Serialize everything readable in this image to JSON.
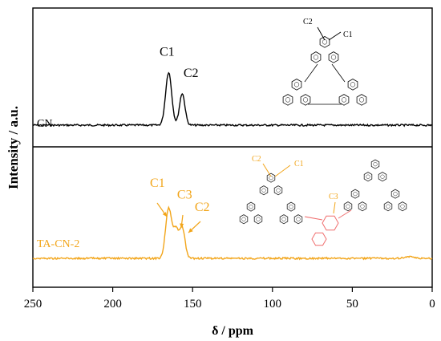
{
  "chart_data": {
    "type": "line",
    "xlabel": "δ / ppm",
    "ylabel": "Intensity / a.u.",
    "xlim": [
      250,
      0
    ],
    "x_reversed": true,
    "xticks": [
      "250",
      "200",
      "150",
      "100",
      "50",
      "0"
    ],
    "xtick_values": [
      250,
      200,
      150,
      100,
      50,
      0
    ],
    "legend": "none",
    "grid": false,
    "panels": [
      {
        "series": [
          {
            "name": "CN",
            "color": "#000000",
            "peaks": [
              {
                "x": 165,
                "height": 0.55,
                "width": 1.9
              },
              {
                "x": 156.5,
                "height": 0.33,
                "width": 1.7
              }
            ]
          }
        ],
        "annotations": [
          {
            "text": "C1",
            "x": 166,
            "y": 0.72
          },
          {
            "text": "C2",
            "x": 151,
            "y": 0.5
          }
        ],
        "structure_labels": [
          "C2",
          "C1"
        ],
        "structure_color": "#000000"
      },
      {
        "series": [
          {
            "name": "TA-CN-2",
            "color": "#F2A51A",
            "peaks": [
              {
                "x": 165,
                "height": 0.52,
                "width": 1.9
              },
              {
                "x": 160.5,
                "height": 0.28,
                "width": 1.6
              },
              {
                "x": 156.5,
                "height": 0.32,
                "width": 1.7
              },
              {
                "x": 15,
                "height": 0.015,
                "width": 3
              }
            ]
          }
        ],
        "annotations": [
          {
            "text": "C1",
            "x": 172,
            "y": 0.74
          },
          {
            "text": "C3",
            "x": 155,
            "y": 0.62
          },
          {
            "text": "C2",
            "x": 144,
            "y": 0.49
          }
        ],
        "structure_labels": [
          "C2",
          "C1",
          "C3"
        ],
        "structure_color": "#F2A51A",
        "linker_color": "#F06E6E"
      }
    ]
  }
}
